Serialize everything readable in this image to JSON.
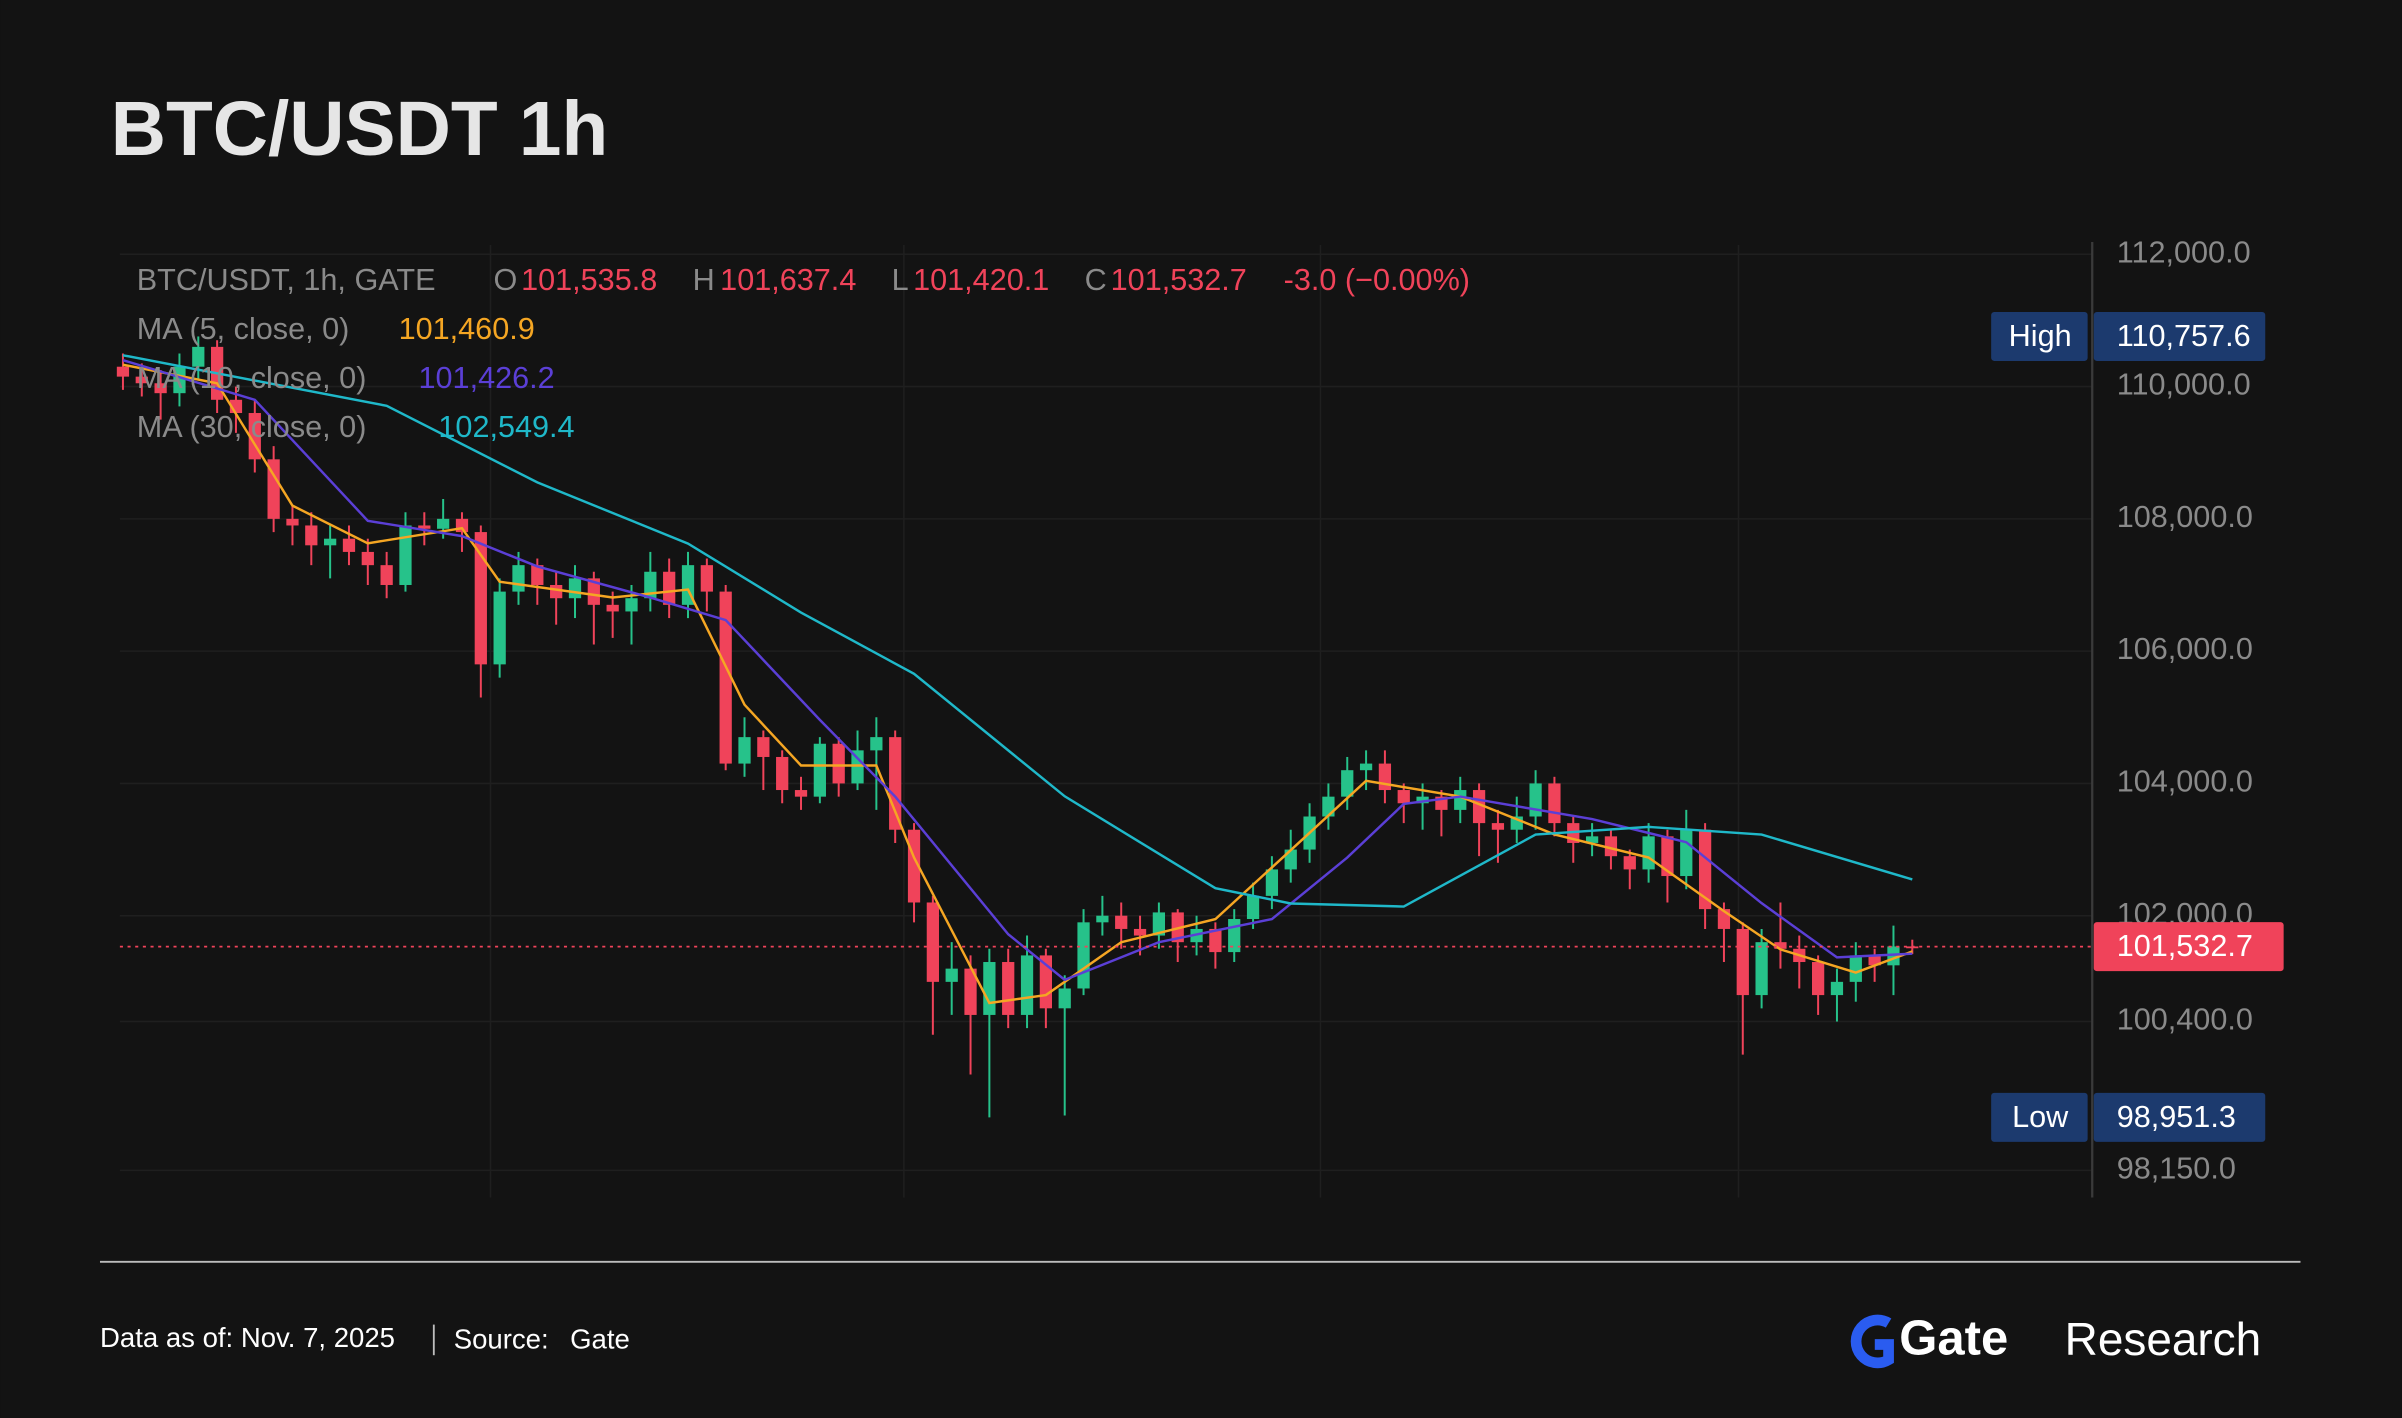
{
  "chart_data": {
    "type": "candlestick",
    "title": "BTC/USDT 1h",
    "header": {
      "symbol": "BTC/USDT, 1h, GATE",
      "o_key": "O",
      "o_value": "101,535.8",
      "h_key": "H",
      "h_value": "101,637.4",
      "l_key": "L",
      "l_value": "101,420.1",
      "c_key": "C",
      "c_value": "101,532.7",
      "change": "-3.0 (−0.00%)"
    },
    "up_color": "#26c28a",
    "down_color": "#f0435a",
    "open": [
      110300,
      110150,
      110050,
      109900,
      110300,
      110600,
      109800,
      109600,
      108900,
      108000,
      107900,
      107600,
      107700,
      107500,
      107300,
      107000,
      107900,
      107850,
      108000,
      107800,
      105800,
      106900,
      107300,
      107000,
      106800,
      107100,
      106700,
      106600,
      106800,
      107200,
      106700,
      107300,
      106900,
      104300,
      104700,
      104400,
      103900,
      103800,
      104600,
      104000,
      104500,
      104700,
      103300,
      102200,
      101000,
      101200,
      100500,
      101300,
      100500,
      101400,
      100600,
      100900,
      101900,
      102000,
      101800,
      101700,
      102050,
      101600,
      101800,
      101450,
      101950,
      102300,
      102700,
      103000,
      103500,
      103800,
      104200,
      104300,
      103900,
      103700,
      103800,
      103600,
      103900,
      103400,
      103300,
      103500,
      104000,
      103400,
      103100,
      103200,
      102900,
      102700,
      103200,
      102600,
      103300,
      102100,
      101800,
      100800,
      101600,
      101500,
      101300,
      100800,
      101000,
      101400,
      101250,
      101535.8
    ],
    "high": [
      110500,
      110350,
      110250,
      110500,
      110757.6,
      110700,
      110000,
      109800,
      109100,
      108200,
      108100,
      107900,
      107900,
      107700,
      107500,
      108100,
      108100,
      108300,
      108100,
      107900,
      107100,
      107500,
      107400,
      107200,
      107300,
      107200,
      106900,
      107000,
      107500,
      107400,
      107500,
      107400,
      107000,
      105000,
      104800,
      104500,
      104100,
      104700,
      104700,
      104800,
      105000,
      104800,
      103400,
      102300,
      101600,
      101400,
      101500,
      101500,
      101700,
      101500,
      101100,
      102100,
      102300,
      102200,
      102000,
      102200,
      102100,
      102000,
      101900,
      102100,
      102500,
      102900,
      103300,
      103700,
      104000,
      104400,
      104500,
      104500,
      104000,
      104000,
      103900,
      104100,
      104000,
      103600,
      103800,
      104200,
      104100,
      103500,
      103400,
      103300,
      103000,
      103400,
      103300,
      103600,
      103400,
      102200,
      101900,
      101800,
      102200,
      101700,
      101400,
      101200,
      101600,
      101500,
      101850,
      101637.4
    ],
    "low": [
      109950,
      109850,
      109500,
      109700,
      110100,
      109600,
      109300,
      108700,
      107800,
      107600,
      107300,
      107100,
      107300,
      107000,
      106800,
      106900,
      107600,
      107700,
      107500,
      105300,
      105600,
      106700,
      106700,
      106400,
      106500,
      106100,
      106200,
      106100,
      106600,
      106500,
      106500,
      106600,
      104200,
      104100,
      103900,
      103700,
      103600,
      103700,
      103800,
      103900,
      103600,
      103100,
      101900,
      100200,
      100500,
      99600,
      98951.3,
      100300,
      100300,
      100300,
      98980,
      100800,
      101700,
      101500,
      101400,
      101500,
      101300,
      101400,
      101200,
      101300,
      101800,
      102100,
      102500,
      102800,
      103300,
      103600,
      103900,
      103700,
      103400,
      103300,
      103200,
      103400,
      102900,
      102800,
      103100,
      103300,
      103200,
      102800,
      102900,
      102700,
      102400,
      102500,
      102200,
      102400,
      101800,
      101300,
      99900,
      100600,
      101200,
      100900,
      100500,
      100400,
      100700,
      101000,
      100800,
      101420.1
    ],
    "close": [
      110150,
      110050,
      109900,
      110300,
      110600,
      109800,
      109600,
      108900,
      108000,
      107900,
      107600,
      107700,
      107500,
      107300,
      107000,
      107900,
      107850,
      108000,
      107800,
      105800,
      106900,
      107300,
      107000,
      106800,
      107100,
      106700,
      106600,
      106800,
      107200,
      106700,
      107300,
      106900,
      104300,
      104700,
      104400,
      103900,
      103800,
      104600,
      104000,
      104500,
      104700,
      103300,
      102200,
      101000,
      101200,
      100500,
      101300,
      100500,
      101400,
      100600,
      100900,
      101900,
      102000,
      101800,
      101700,
      102050,
      101600,
      101800,
      101450,
      101950,
      102300,
      102700,
      103000,
      103500,
      103800,
      104200,
      104300,
      103900,
      103700,
      103800,
      103600,
      103900,
      103400,
      103300,
      103500,
      104000,
      103400,
      103100,
      103200,
      102900,
      102700,
      103200,
      102600,
      103300,
      102100,
      101800,
      100800,
      101600,
      101500,
      101300,
      100800,
      101000,
      101400,
      101250,
      101535.8,
      101532.7
    ],
    "series": [
      {
        "name": "MA (5, close, 0)",
        "legend_value": "101,460.9",
        "color": "#f5a623",
        "x": [
          0,
          5,
          9,
          13,
          18,
          20,
          26,
          30,
          33,
          36,
          40,
          42,
          46,
          49,
          53,
          58,
          62,
          66,
          71,
          76,
          81,
          85,
          88,
          92,
          95
        ],
        "values": [
          110330,
          110050,
          108200,
          107630,
          107860,
          107050,
          106810,
          106930,
          105190,
          104270,
          104270,
          102880,
          100680,
          100800,
          101600,
          101950,
          102990,
          104040,
          103800,
          103230,
          102880,
          102070,
          101490,
          101140,
          101460.9
        ]
      },
      {
        "name": "MA (10, close, 0)",
        "legend_value": "101,426.2",
        "color": "#5b3fd6",
        "x": [
          0,
          7,
          13,
          18,
          22,
          28,
          32,
          37,
          41,
          47,
          50,
          55,
          61,
          65,
          68,
          71,
          78,
          83,
          87,
          91,
          95
        ],
        "values": [
          110400,
          109800,
          107970,
          107740,
          107280,
          106810,
          106470,
          104960,
          103800,
          101720,
          101030,
          101600,
          101950,
          102880,
          103690,
          103800,
          103460,
          103110,
          102190,
          101370,
          101426.2
        ]
      },
      {
        "name": "MA (30, close, 0)",
        "legend_value": "102,549.4",
        "color": "#1fb8c9",
        "x": [
          0,
          14,
          22,
          30,
          36,
          42,
          50,
          58,
          62,
          68,
          75,
          81,
          87,
          95
        ],
        "values": [
          110473,
          109709,
          108551,
          107625,
          106584,
          105658,
          103806,
          102417,
          102185,
          102139,
          103227,
          103343,
          103227,
          102549.4
        ]
      }
    ],
    "ylim": [
      97740,
      112140
    ],
    "yticks": [
      {
        "value": 112000,
        "label": "112,000.0"
      },
      {
        "value": 110000,
        "label": "110,000.0"
      },
      {
        "value": 108000,
        "label": "108,000.0"
      },
      {
        "value": 106000,
        "label": "106,000.0"
      },
      {
        "value": 104000,
        "label": "104,000.0"
      },
      {
        "value": 102000,
        "label": "102,000.0"
      },
      {
        "value": 100400,
        "label": "100,400.0"
      },
      {
        "value": 98150,
        "label": "98,150.0"
      }
    ],
    "grid": true,
    "high_tag": {
      "label": "High",
      "value": 110757.6,
      "value_label": "110,757.6"
    },
    "low_tag": {
      "label": "Low",
      "value": 98951.3,
      "value_label": "98,951.3"
    },
    "last_tag": {
      "value": 101532.7,
      "value_label": "101,532.7"
    },
    "footer": {
      "date": "Data as of: Nov. 7, 2025",
      "source_key": "Source:",
      "source": "Gate",
      "brand": "Gate",
      "brand_suffix": "Research"
    }
  }
}
